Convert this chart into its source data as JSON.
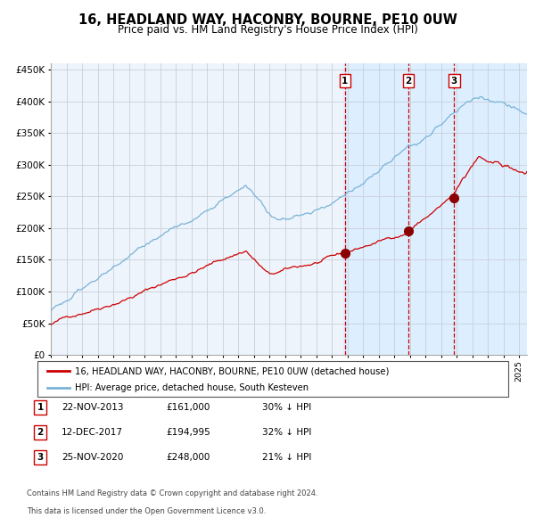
{
  "title": "16, HEADLAND WAY, HACONBY, BOURNE, PE10 0UW",
  "subtitle": "Price paid vs. HM Land Registry's House Price Index (HPI)",
  "ylim": [
    0,
    460000
  ],
  "yticks": [
    0,
    50000,
    100000,
    150000,
    200000,
    250000,
    300000,
    350000,
    400000,
    450000
  ],
  "ytick_labels": [
    "£0",
    "£50K",
    "£100K",
    "£150K",
    "£200K",
    "£250K",
    "£300K",
    "£350K",
    "£400K",
    "£450K"
  ],
  "hpi_color": "#7ab3d8",
  "price_color": "#cc0000",
  "dot_color": "#8b0000",
  "shade_color": "#ddeeff",
  "bg_color": "#eef4fb",
  "transactions": [
    {
      "date": "22-NOV-2013",
      "price": 161000,
      "label": "1",
      "pct": "30%",
      "dir": "↓"
    },
    {
      "date": "12-DEC-2017",
      "price": 194995,
      "label": "2",
      "pct": "32%",
      "dir": "↓"
    },
    {
      "date": "25-NOV-2020",
      "price": 248000,
      "label": "3",
      "pct": "21%",
      "dir": "↓"
    }
  ],
  "legend_entry1": "16, HEADLAND WAY, HACONBY, BOURNE, PE10 0UW (detached house)",
  "legend_entry2": "HPI: Average price, detached house, South Kesteven",
  "footnote1": "Contains HM Land Registry data © Crown copyright and database right 2024.",
  "footnote2": "This data is licensed under the Open Government Licence v3.0."
}
